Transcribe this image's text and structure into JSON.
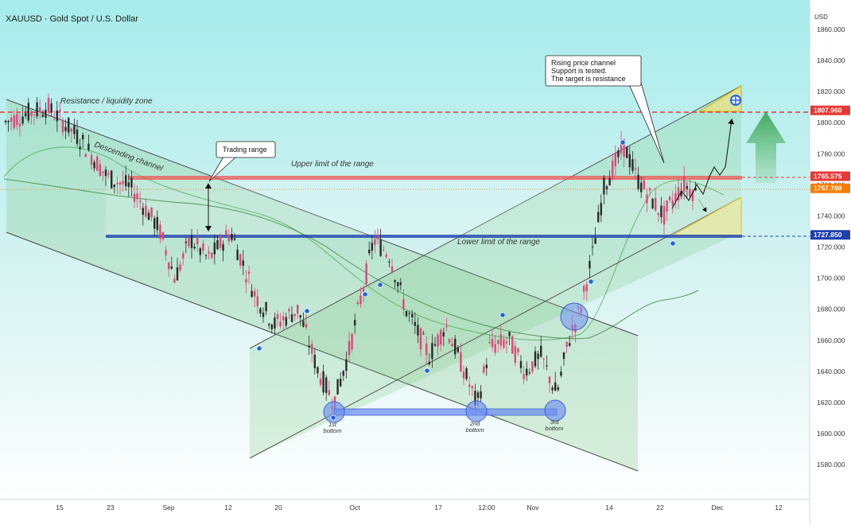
{
  "header": {
    "symbol_title": "XAUUSD · Gold Spot / U.S. Dollar"
  },
  "chart_data": {
    "type": "candlestick-annotated",
    "currency_label": "USD",
    "ylim": [
      1560,
      1870
    ],
    "y_ticks": [
      1860,
      1840,
      1820,
      1800,
      1780,
      1760,
      1740,
      1720,
      1700,
      1680,
      1660,
      1640,
      1620,
      1600,
      1580
    ],
    "y_tick_labels": [
      "1860.000",
      "1840.000",
      "1820.000",
      "1800.000",
      "1780.000",
      "1760.000",
      "1740.000",
      "1720.000",
      "1700.000",
      "1680.000",
      "1660.000",
      "1640.000",
      "1620.000",
      "1600.000",
      "1580.000"
    ],
    "x_labels": [
      "15",
      "23",
      "Sep",
      "12",
      "20",
      "Oct",
      "17",
      "12:00",
      "Nov",
      "14",
      "22",
      "Dec",
      "12"
    ],
    "price_marks": [
      {
        "label": "1807.960",
        "value": 1807.96,
        "color": "#e53935"
      },
      {
        "label": "1765.575",
        "value": 1765.575,
        "color": "#e53935"
      },
      {
        "label": "1757.780",
        "value": 1757.78,
        "color": "#f57c00"
      },
      {
        "label": "1727.850",
        "value": 1727.85,
        "color": "#1e40af"
      }
    ],
    "annotations": {
      "resistance_zone": "Resistance / liquidity zone",
      "descending_channel": "Descending channel",
      "trading_range": "Trading range",
      "upper_limit": "Upper limit of the range",
      "lower_limit": "Lower limit of the range",
      "rising_note": [
        "Rising price channel",
        "Support is tested.",
        "The target is resistance"
      ],
      "bottoms": [
        {
          "line1": "1st",
          "line2": "bottom"
        },
        {
          "line1": "2nd",
          "line2": "bottom"
        },
        {
          "line1": "3rd",
          "line2": "bottom"
        }
      ]
    },
    "colors": {
      "resistance": "#e53935",
      "support": "#1e40af",
      "channel_fill": "#81c784",
      "background_top": "#a7ecec",
      "background_bottom": "#ffffff"
    }
  }
}
